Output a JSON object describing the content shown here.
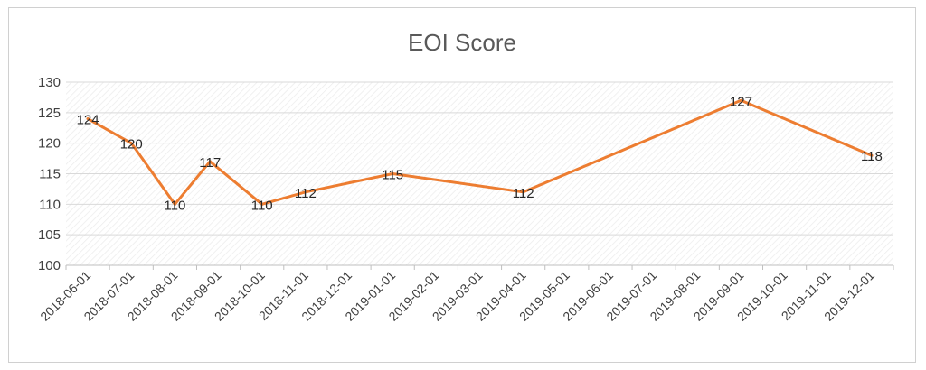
{
  "chart_data": {
    "type": "line",
    "title": "EOI Score",
    "xlabel": "",
    "ylabel": "",
    "ylim": [
      100,
      130
    ],
    "yticks": [
      100,
      105,
      110,
      115,
      120,
      125,
      130
    ],
    "categories": [
      "2018-06-01",
      "2018-07-01",
      "2018-08-01",
      "2018-09-01",
      "2018-10-01",
      "2018-11-01",
      "2018-12-01",
      "2019-01-01",
      "2019-02-01",
      "2019-03-01",
      "2019-04-01",
      "2019-05-01",
      "2019-06-01",
      "2019-07-01",
      "2019-08-01",
      "2019-09-01",
      "2019-10-01",
      "2019-11-01",
      "2019-12-01"
    ],
    "points": [
      {
        "x": "2018-06-01",
        "y": 124
      },
      {
        "x": "2018-07-01",
        "y": 120
      },
      {
        "x": "2018-08-01",
        "y": 110
      },
      {
        "x": "2018-08-26",
        "y": 117
      },
      {
        "x": "2018-10-01",
        "y": 110
      },
      {
        "x": "2018-11-01",
        "y": 112
      },
      {
        "x": "2019-01-01",
        "y": 115
      },
      {
        "x": "2019-04-01",
        "y": 112
      },
      {
        "x": "2019-09-01",
        "y": 127
      },
      {
        "x": "2019-12-01",
        "y": 118
      }
    ],
    "data_labels": [
      124,
      120,
      110,
      117,
      110,
      112,
      115,
      112,
      127,
      118
    ],
    "grid": true,
    "legend": "none",
    "line_color": "#ED7D31",
    "grid_color": "#D9D9D9",
    "plot_background": "hatched"
  }
}
